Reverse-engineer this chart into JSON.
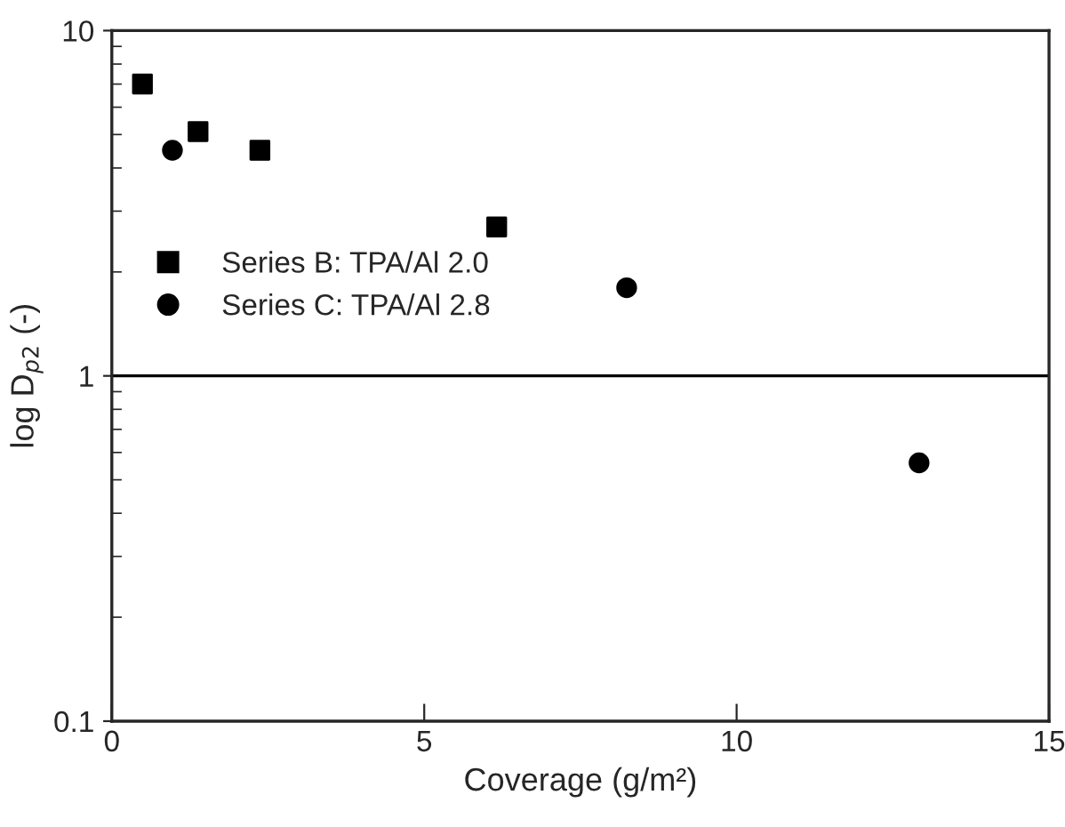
{
  "chart_data": {
    "type": "scatter",
    "xlabel": "Coverage (g/m²)",
    "ylabel": "log D$_{p2}$ (-)",
    "log": "y",
    "xlim": [
      0,
      15
    ],
    "xticks": [
      0,
      5,
      10,
      15
    ],
    "ylim": [
      0.1,
      10
    ],
    "yticks": [
      0.1,
      1,
      10
    ],
    "legend": "left",
    "grid": false,
    "ref_lines": [
      {
        "axis": "y",
        "value": 1,
        "color": "#000000",
        "line_style": "solid"
      }
    ],
    "series": [
      {
        "name": "Series B: TPA/Al 2.0",
        "color": "#000000",
        "marker": "square",
        "x": [
          0.49,
          1.38,
          2.37,
          6.16
        ],
        "values": [
          7.0,
          5.1,
          4.5,
          2.7
        ]
      },
      {
        "name": "Series C: TPA/Al 2.8",
        "color": "#000000",
        "marker": "circle",
        "x": [
          0.97,
          8.24,
          12.92
        ],
        "values": [
          4.5,
          1.8,
          0.56
        ]
      }
    ]
  }
}
